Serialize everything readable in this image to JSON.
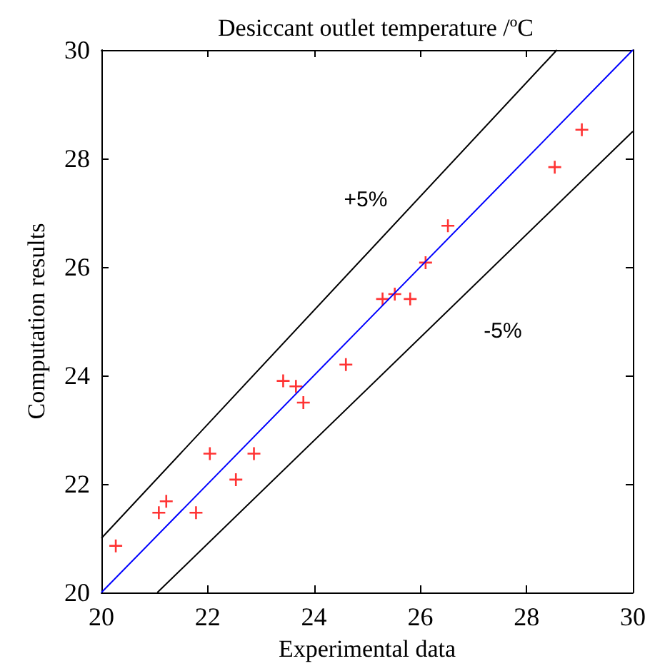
{
  "chart_data": {
    "type": "scatter",
    "title": "Desiccant outlet temperature /ºC",
    "xlabel": "Experimental data",
    "ylabel": "Computation results",
    "xlim": [
      20,
      30
    ],
    "ylim": [
      20,
      30
    ],
    "xticks": [
      20,
      22,
      24,
      26,
      28,
      30
    ],
    "yticks": [
      20,
      22,
      24,
      26,
      28,
      30
    ],
    "grid": false,
    "annotations": [
      "+5%",
      "-5%"
    ],
    "series": [
      {
        "marker": "cross",
        "color": "#ff0000",
        "x": [
          20.27,
          21.08,
          21.22,
          21.78,
          22.04,
          22.53,
          22.87,
          23.42,
          23.66,
          23.8,
          24.6,
          25.29,
          25.52,
          25.81,
          26.1,
          26.52,
          28.53,
          29.04
        ],
        "values": [
          20.86,
          21.47,
          21.68,
          21.47,
          22.56,
          22.08,
          22.56,
          23.9,
          23.8,
          23.5,
          24.2,
          25.41,
          25.5,
          25.41,
          26.08,
          26.76,
          27.84,
          28.53
        ]
      },
      {
        "type": "line",
        "color": "#0000ff",
        "x": [
          20,
          30
        ],
        "values": [
          20,
          30
        ]
      },
      {
        "type": "line",
        "color": "#000000",
        "x": [
          20,
          28.571
        ],
        "values": [
          21,
          30
        ]
      },
      {
        "type": "line",
        "color": "#000000",
        "x": [
          21.053,
          30
        ],
        "values": [
          20,
          28.5
        ]
      }
    ]
  }
}
